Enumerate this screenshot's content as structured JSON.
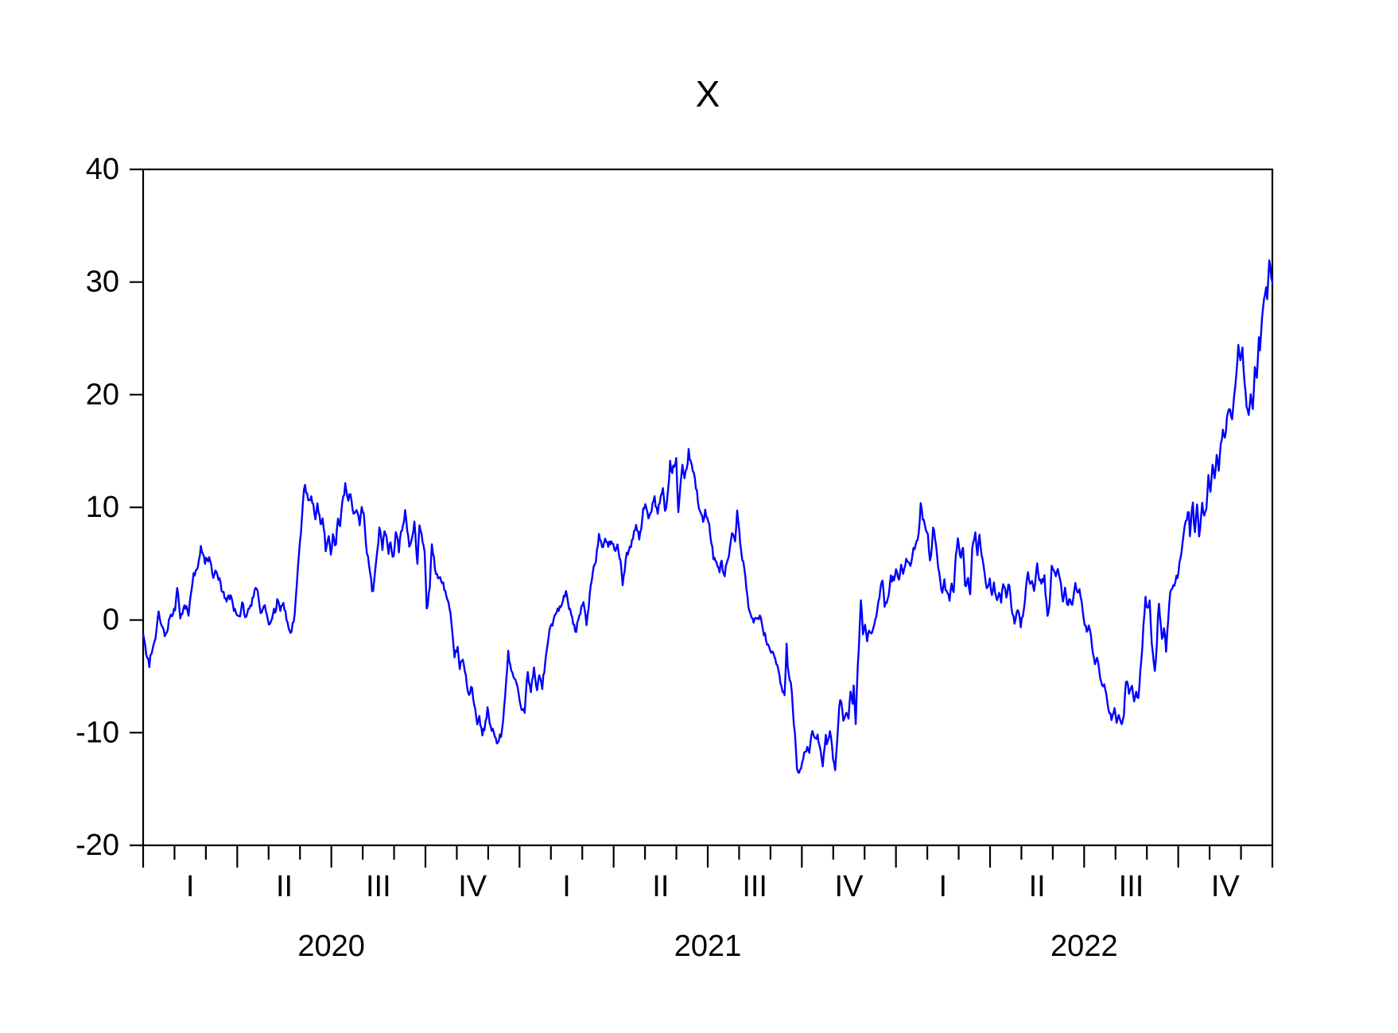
{
  "title": "X",
  "colors": {
    "line": "#0000fe",
    "axis": "#000000",
    "text": "#000000",
    "background": "#ffffff"
  },
  "chart_data": {
    "type": "line",
    "title": "X",
    "series_name": "X",
    "frequency": "daily",
    "legend": "none",
    "grid": false,
    "y_axis": {
      "min": -20,
      "max": 40,
      "tick_step": 10,
      "tick_labels": [
        "40",
        "30",
        "20",
        "10",
        "0",
        "-10",
        "-20"
      ]
    },
    "x_axis": {
      "years": [
        "2020",
        "2021",
        "2022"
      ],
      "quarter_labels": [
        "I",
        "II",
        "III",
        "IV"
      ],
      "months_total": 36,
      "major_tick_unit": "quarter",
      "minor_tick_unit": "month"
    },
    "keypoints_day_value": [
      [
        0,
        -1.3
      ],
      [
        3,
        -3
      ],
      [
        6,
        -4.1
      ],
      [
        12,
        -1.6
      ],
      [
        15,
        0.7
      ],
      [
        19,
        -0.6
      ],
      [
        23,
        -1.1
      ],
      [
        27,
        0.4
      ],
      [
        31,
        0.9
      ],
      [
        33,
        2.9
      ],
      [
        36,
        0.1
      ],
      [
        40,
        1.3
      ],
      [
        44,
        0.4
      ],
      [
        48,
        3.4
      ],
      [
        52,
        4.4
      ],
      [
        56,
        6.5
      ],
      [
        60,
        5
      ],
      [
        64,
        5.6
      ],
      [
        68,
        3.8
      ],
      [
        71,
        4.3
      ],
      [
        76,
        2.6
      ],
      [
        81,
        1.6
      ],
      [
        85,
        2.1
      ],
      [
        89,
        0.9
      ],
      [
        93,
        0.4
      ],
      [
        96,
        1.6
      ],
      [
        99,
        0.3
      ],
      [
        103,
        1.1
      ],
      [
        106,
        2
      ],
      [
        110,
        2.8
      ],
      [
        114,
        0.6
      ],
      [
        118,
        1.4
      ],
      [
        122,
        -0.4
      ],
      [
        126,
        0.6
      ],
      [
        130,
        1.9
      ],
      [
        133,
        0.9
      ],
      [
        136,
        1.6
      ],
      [
        140,
        -0.2
      ],
      [
        143,
        -1.2
      ],
      [
        147,
        0.5
      ],
      [
        149,
        3
      ],
      [
        152,
        7
      ],
      [
        155,
        10.5
      ],
      [
        157,
        12
      ],
      [
        160,
        10.6
      ],
      [
        163,
        11
      ],
      [
        167,
        8.9
      ],
      [
        169,
        10.4
      ],
      [
        172,
        8.6
      ],
      [
        174,
        9
      ],
      [
        177,
        6.2
      ],
      [
        180,
        7.4
      ],
      [
        182,
        5.8
      ],
      [
        184,
        7.6
      ],
      [
        187,
        6.8
      ],
      [
        189,
        9
      ],
      [
        191,
        8.4
      ],
      [
        194,
        11
      ],
      [
        196,
        12.1
      ],
      [
        199,
        10.5
      ],
      [
        201,
        11.2
      ],
      [
        204,
        9.4
      ],
      [
        207,
        9.7
      ],
      [
        210,
        8.4
      ],
      [
        212,
        10.1
      ],
      [
        214,
        9.5
      ],
      [
        217,
        5.9
      ],
      [
        220,
        4.3
      ],
      [
        222,
        2.5
      ],
      [
        225,
        4.5
      ],
      [
        229,
        8.2
      ],
      [
        232,
        6.2
      ],
      [
        234,
        7.9
      ],
      [
        238,
        5.9
      ],
      [
        240,
        6.9
      ],
      [
        242,
        5.6
      ],
      [
        245,
        7.7
      ],
      [
        248,
        6.1
      ],
      [
        250,
        7.8
      ],
      [
        252,
        8.5
      ],
      [
        254,
        9.7
      ],
      [
        258,
        6.6
      ],
      [
        261,
        7.5
      ],
      [
        263,
        8.7
      ],
      [
        266,
        4.9
      ],
      [
        268,
        8.4
      ],
      [
        271,
        7
      ],
      [
        273,
        6.1
      ],
      [
        275,
        1
      ],
      [
        278,
        3
      ],
      [
        280,
        6.8
      ],
      [
        283,
        4.4
      ],
      [
        286,
        3.7
      ],
      [
        289,
        3.4
      ],
      [
        292,
        2.7
      ],
      [
        295,
        1.8
      ],
      [
        298,
        0.6
      ],
      [
        302,
        -3.3
      ],
      [
        305,
        -2.4
      ],
      [
        307,
        -4.3
      ],
      [
        310,
        -3.6
      ],
      [
        313,
        -5
      ],
      [
        316,
        -6.7
      ],
      [
        318,
        -6
      ],
      [
        322,
        -7.8
      ],
      [
        324,
        -9.2
      ],
      [
        326,
        -8.5
      ],
      [
        329,
        -10.2
      ],
      [
        332,
        -9
      ],
      [
        334,
        -7.7
      ],
      [
        337,
        -9.4
      ],
      [
        340,
        -10
      ],
      [
        343,
        -11
      ],
      [
        346,
        -10.2
      ],
      [
        349,
        -9
      ],
      [
        352,
        -5.5
      ],
      [
        354,
        -2.7
      ],
      [
        356,
        -4
      ],
      [
        359,
        -5.1
      ],
      [
        362,
        -5.6
      ],
      [
        365,
        -7
      ],
      [
        367,
        -7.9
      ],
      [
        370,
        -8.2
      ],
      [
        373,
        -4.7
      ],
      [
        376,
        -6.5
      ],
      [
        379,
        -4.3
      ],
      [
        382,
        -6.3
      ],
      [
        384,
        -4.9
      ],
      [
        387,
        -6.1
      ],
      [
        390,
        -3.6
      ],
      [
        393,
        -1.6
      ],
      [
        396,
        -0.3
      ],
      [
        400,
        0.6
      ],
      [
        403,
        0.9
      ],
      [
        407,
        1.7
      ],
      [
        410,
        2.5
      ],
      [
        413,
        1
      ],
      [
        416,
        0.2
      ],
      [
        420,
        -1.1
      ],
      [
        423,
        0.4
      ],
      [
        427,
        1.6
      ],
      [
        430,
        -0.4
      ],
      [
        433,
        2.2
      ],
      [
        436,
        4.3
      ],
      [
        439,
        5.1
      ],
      [
        442,
        7.6
      ],
      [
        445,
        6.5
      ],
      [
        448,
        7.2
      ],
      [
        451,
        6.4
      ],
      [
        454,
        7
      ],
      [
        457,
        6.2
      ],
      [
        460,
        6.7
      ],
      [
        463,
        5.2
      ],
      [
        465,
        3.1
      ],
      [
        468,
        5.5
      ],
      [
        471,
        6.3
      ],
      [
        474,
        7
      ],
      [
        478,
        8.4
      ],
      [
        481,
        7.1
      ],
      [
        484,
        9
      ],
      [
        487,
        10.2
      ],
      [
        490,
        9
      ],
      [
        493,
        9.6
      ],
      [
        496,
        10.9
      ],
      [
        499,
        9.5
      ],
      [
        501,
        10.3
      ],
      [
        504,
        11.7
      ],
      [
        506,
        9.7
      ],
      [
        508,
        10.6
      ],
      [
        511,
        14.1
      ],
      [
        513,
        13
      ],
      [
        515,
        13.5
      ],
      [
        517,
        14.4
      ],
      [
        519,
        9.6
      ],
      [
        521,
        12
      ],
      [
        523,
        13.7
      ],
      [
        525,
        12.6
      ],
      [
        527,
        13.4
      ],
      [
        529,
        15.1
      ],
      [
        531,
        14.2
      ],
      [
        534,
        13
      ],
      [
        536,
        11.7
      ],
      [
        538,
        10.4
      ],
      [
        541,
        9.4
      ],
      [
        543,
        8.7
      ],
      [
        545,
        9.7
      ],
      [
        548,
        8.8
      ],
      [
        550,
        7.5
      ],
      [
        553,
        5.4
      ],
      [
        556,
        5.1
      ],
      [
        559,
        4.3
      ],
      [
        561,
        5.3
      ],
      [
        564,
        3.9
      ],
      [
        567,
        5.4
      ],
      [
        569,
        6.4
      ],
      [
        571,
        7.8
      ],
      [
        574,
        7
      ],
      [
        576,
        9.7
      ],
      [
        578,
        8
      ],
      [
        581,
        5.4
      ],
      [
        583,
        4.5
      ],
      [
        586,
        2.1
      ],
      [
        589,
        0.6
      ],
      [
        592,
        -0.2
      ],
      [
        595,
        0.2
      ],
      [
        598,
        0.5
      ],
      [
        601,
        -0.8
      ],
      [
        605,
        -2.2
      ],
      [
        609,
        -2.9
      ],
      [
        613,
        -3.4
      ],
      [
        617,
        -4.8
      ],
      [
        620,
        -6.3
      ],
      [
        622,
        -6.7
      ],
      [
        624,
        -2.2
      ],
      [
        625,
        -4
      ],
      [
        627,
        -5.3
      ],
      [
        629,
        -6.3
      ],
      [
        632,
        -10
      ],
      [
        634,
        -13.1
      ],
      [
        636,
        -13.5
      ],
      [
        639,
        -12.7
      ],
      [
        642,
        -11.6
      ],
      [
        644,
        -11.2
      ],
      [
        646,
        -11.7
      ],
      [
        649,
        -9.9
      ],
      [
        652,
        -10.5
      ],
      [
        654,
        -10.1
      ],
      [
        657,
        -11.7
      ],
      [
        659,
        -13
      ],
      [
        662,
        -10.1
      ],
      [
        663,
        -11
      ],
      [
        666,
        -9.9
      ],
      [
        669,
        -12.3
      ],
      [
        671,
        -13.4
      ],
      [
        673,
        -10.8
      ],
      [
        675,
        -7.7
      ],
      [
        677,
        -7.2
      ],
      [
        679,
        -9
      ],
      [
        682,
        -8.2
      ],
      [
        684,
        -8.7
      ],
      [
        686,
        -6.3
      ],
      [
        688,
        -7.5
      ],
      [
        689,
        -5.9
      ],
      [
        691,
        -9.3
      ],
      [
        692,
        -6.3
      ],
      [
        694,
        -2.5
      ],
      [
        696,
        1.7
      ],
      [
        698,
        -1.2
      ],
      [
        700,
        -0.4
      ],
      [
        702,
        -1.8
      ],
      [
        704,
        -0.9
      ],
      [
        706,
        -1.2
      ],
      [
        709,
        -0.4
      ],
      [
        712,
        0.9
      ],
      [
        715,
        2.8
      ],
      [
        717,
        3.5
      ],
      [
        719,
        1.2
      ],
      [
        723,
        2.3
      ],
      [
        725,
        3.9
      ],
      [
        728,
        3.5
      ],
      [
        730,
        4.6
      ],
      [
        733,
        3.5
      ],
      [
        735,
        5
      ],
      [
        737,
        4.2
      ],
      [
        740,
        5.5
      ],
      [
        743,
        5
      ],
      [
        746,
        5.7
      ],
      [
        748,
        6.3
      ],
      [
        751,
        7
      ],
      [
        754,
        10.4
      ],
      [
        756,
        9
      ],
      [
        759,
        7.9
      ],
      [
        761,
        7.7
      ],
      [
        763,
        5.2
      ],
      [
        766,
        8.3
      ],
      [
        769,
        6.5
      ],
      [
        773,
        3.5
      ],
      [
        775,
        2.4
      ],
      [
        777,
        3.7
      ],
      [
        780,
        2.4
      ],
      [
        782,
        1.8
      ],
      [
        784,
        3.3
      ],
      [
        786,
        2.5
      ],
      [
        788,
        5.8
      ],
      [
        790,
        7.2
      ],
      [
        793,
        5.6
      ],
      [
        795,
        6.5
      ],
      [
        797,
        3
      ],
      [
        800,
        3.7
      ],
      [
        802,
        2.2
      ],
      [
        804,
        6.3
      ],
      [
        807,
        7.8
      ],
      [
        809,
        5.8
      ],
      [
        811,
        7.5
      ],
      [
        814,
        5.3
      ],
      [
        816,
        4.2
      ],
      [
        818,
        2.8
      ],
      [
        821,
        3.6
      ],
      [
        823,
        2.3
      ],
      [
        825,
        3.3
      ],
      [
        828,
        1.7
      ],
      [
        830,
        2.5
      ],
      [
        832,
        1.5
      ],
      [
        834,
        3.2
      ],
      [
        837,
        2
      ],
      [
        840,
        3
      ],
      [
        842,
        1.1
      ],
      [
        845,
        -0.3
      ],
      [
        848,
        0.8
      ],
      [
        851,
        -0.6
      ],
      [
        854,
        0.9
      ],
      [
        858,
        4.3
      ],
      [
        861,
        3.4
      ],
      [
        864,
        2.6
      ],
      [
        867,
        5
      ],
      [
        869,
        3.5
      ],
      [
        871,
        3.2
      ],
      [
        874,
        3.9
      ],
      [
        877,
        0.4
      ],
      [
        879,
        1.5
      ],
      [
        881,
        4.9
      ],
      [
        885,
        3.9
      ],
      [
        887,
        4.6
      ],
      [
        891,
        2.3
      ],
      [
        894,
        2.8
      ],
      [
        896,
        1.3
      ],
      [
        898,
        1.8
      ],
      [
        901,
        1.4
      ],
      [
        904,
        3.2
      ],
      [
        906,
        2.4
      ],
      [
        908,
        2.8
      ],
      [
        912,
        0.2
      ],
      [
        915,
        -1
      ],
      [
        917,
        -0.4
      ],
      [
        920,
        -2.2
      ],
      [
        923,
        -3.9
      ],
      [
        925,
        -3.3
      ],
      [
        928,
        -5.1
      ],
      [
        931,
        -5.8
      ],
      [
        934,
        -6.5
      ],
      [
        936,
        -8
      ],
      [
        939,
        -8.9
      ],
      [
        942,
        -7.8
      ],
      [
        944,
        -9.1
      ],
      [
        946,
        -8.4
      ],
      [
        949,
        -9.3
      ],
      [
        951,
        -8.5
      ],
      [
        953,
        -5.6
      ],
      [
        956,
        -6.5
      ],
      [
        959,
        -5.8
      ],
      [
        961,
        -7.2
      ],
      [
        963,
        -6.3
      ],
      [
        965,
        -7
      ],
      [
        968,
        -3.5
      ],
      [
        970,
        -0.5
      ],
      [
        972,
        2
      ],
      [
        974,
        1
      ],
      [
        976,
        1.8
      ],
      [
        978,
        -2
      ],
      [
        981,
        -4.5
      ],
      [
        983,
        -2
      ],
      [
        985,
        1.5
      ],
      [
        987,
        -0.5
      ],
      [
        988,
        -1.7
      ],
      [
        990,
        -0.8
      ],
      [
        992,
        -2.9
      ],
      [
        994,
        0
      ],
      [
        996,
        2.5
      ],
      [
        998,
        2.8
      ],
      [
        1001,
        3.3
      ],
      [
        1003,
        3.8
      ],
      [
        1006,
        5.5
      ],
      [
        1008,
        7
      ],
      [
        1012,
        8.9
      ],
      [
        1014,
        9.6
      ],
      [
        1015,
        7.4
      ],
      [
        1018,
        10.4
      ],
      [
        1020,
        7.9
      ],
      [
        1022,
        10.3
      ],
      [
        1024,
        7.4
      ],
      [
        1027,
        10.4
      ],
      [
        1029,
        9.2
      ],
      [
        1031,
        9.9
      ],
      [
        1033,
        12.9
      ],
      [
        1035,
        11.4
      ],
      [
        1037,
        13.8
      ],
      [
        1039,
        12.6
      ],
      [
        1041,
        14.6
      ],
      [
        1043,
        13.3
      ],
      [
        1045,
        15.6
      ],
      [
        1047,
        16.8
      ],
      [
        1049,
        16.1
      ],
      [
        1051,
        18
      ],
      [
        1054,
        18.6
      ],
      [
        1056,
        17.8
      ],
      [
        1058,
        20
      ],
      [
        1060,
        21.7
      ],
      [
        1062,
        24.5
      ],
      [
        1064,
        23
      ],
      [
        1066,
        24.1
      ],
      [
        1068,
        21
      ],
      [
        1070,
        19
      ],
      [
        1072,
        18.3
      ],
      [
        1074,
        20
      ],
      [
        1076,
        18.8
      ],
      [
        1078,
        22.4
      ],
      [
        1080,
        21.4
      ],
      [
        1082,
        25.1
      ],
      [
        1083,
        23.9
      ],
      [
        1086,
        27.8
      ],
      [
        1089,
        29.6
      ],
      [
        1090,
        28.4
      ],
      [
        1092,
        32
      ],
      [
        1093,
        31.5
      ],
      [
        1095,
        30
      ]
    ]
  }
}
